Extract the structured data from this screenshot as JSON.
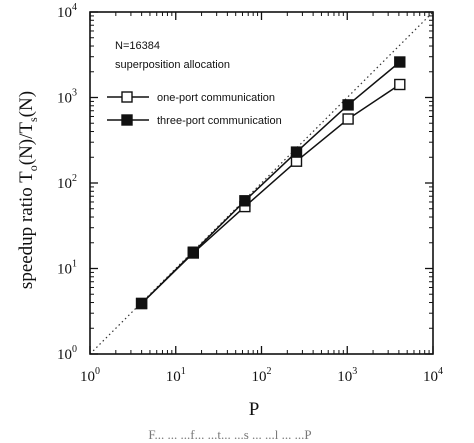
{
  "chart_data": {
    "type": "line",
    "x_scale": "log",
    "y_scale": "log",
    "xlim": [
      1,
      10000
    ],
    "ylim": [
      1,
      10000
    ],
    "xlabel": "P",
    "ylabel": "speedup ratio T_o(N)/T_s(N)",
    "x_ticks": [
      {
        "base": "10",
        "exp": "0",
        "value": 1
      },
      {
        "base": "10",
        "exp": "1",
        "value": 10
      },
      {
        "base": "10",
        "exp": "2",
        "value": 100
      },
      {
        "base": "10",
        "exp": "3",
        "value": 1000
      },
      {
        "base": "10",
        "exp": "4",
        "value": 10000
      }
    ],
    "y_ticks": [
      {
        "base": "10",
        "exp": "0",
        "value": 1
      },
      {
        "base": "10",
        "exp": "1",
        "value": 10
      },
      {
        "base": "10",
        "exp": "2",
        "value": 100
      },
      {
        "base": "10",
        "exp": "3",
        "value": 1000
      },
      {
        "base": "10",
        "exp": "4",
        "value": 10000
      }
    ],
    "annotations": [
      "N=16384",
      "superposition allocation"
    ],
    "legend_placement": "top-left",
    "reference_line": {
      "style": "dotted",
      "x": [
        1,
        10000
      ],
      "y": [
        1,
        10000
      ]
    },
    "series": [
      {
        "name": "one-port communication",
        "marker": "open-square",
        "color": "#111111",
        "x": [
          4,
          16,
          64,
          256,
          1024,
          4096
        ],
        "y": [
          3.9,
          15.2,
          53,
          180,
          560,
          1420
        ]
      },
      {
        "name": "three-port communication",
        "marker": "filled-square",
        "color": "#111111",
        "x": [
          4,
          16,
          64,
          256,
          1024,
          4096
        ],
        "y": [
          3.9,
          15.5,
          62,
          230,
          820,
          2600
        ]
      }
    ],
    "caption": "F... ... ...f... ...t... ...s ... ...l ... ...P"
  }
}
